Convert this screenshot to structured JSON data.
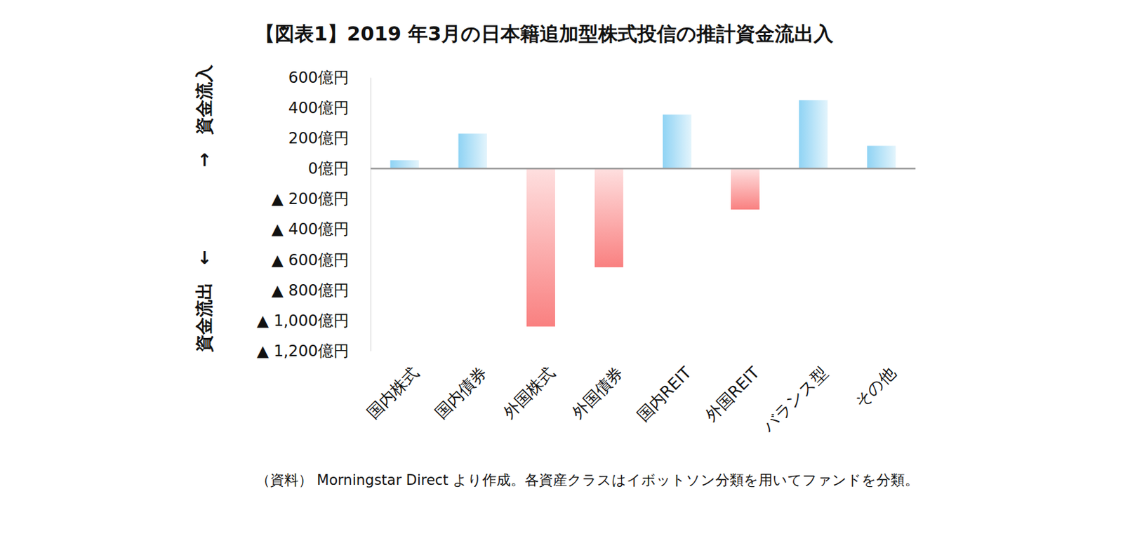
{
  "chart_data": {
    "type": "bar",
    "title": "【図表1】2019 年3月の日本籍追加型株式投信の推計資金流出入",
    "y_axis_labels": [
      "→　資金流入",
      "資金流出　←"
    ],
    "note": "（資料） Morningstar Direct より作成。各資産クラスはイボットソン分類を用いてファンドを分類。",
    "categories": [
      "国内株式",
      "国内債券",
      "外国株式",
      "外国債券",
      "国内REIT",
      "外国REIT",
      "バランス型",
      "その他"
    ],
    "values": [
      55,
      230,
      -1040,
      -650,
      355,
      -270,
      450,
      150
    ],
    "colors": [
      "#8fd3f4",
      "#8fd3f4",
      "#f98080",
      "#f98080",
      "#8fd3f4",
      "#f98080",
      "#8fd3f4",
      "#8fd3f4"
    ],
    "ylim": [
      -1200,
      600
    ],
    "yticks": [
      {
        "value": 600,
        "label": "600億円"
      },
      {
        "value": 400,
        "label": "400億円"
      },
      {
        "value": 200,
        "label": "200億円"
      },
      {
        "value": 0,
        "label": "0億円"
      },
      {
        "value": -200,
        "label": "▲ 200億円"
      },
      {
        "value": -400,
        "label": "▲ 400億円"
      },
      {
        "value": -600,
        "label": "▲ 600億円"
      },
      {
        "value": -800,
        "label": "▲ 800億円"
      },
      {
        "value": -1000,
        "label": "▲ 1,000億円"
      },
      {
        "value": -1200,
        "label": "▲ 1,200億円"
      }
    ],
    "grid": false
  }
}
